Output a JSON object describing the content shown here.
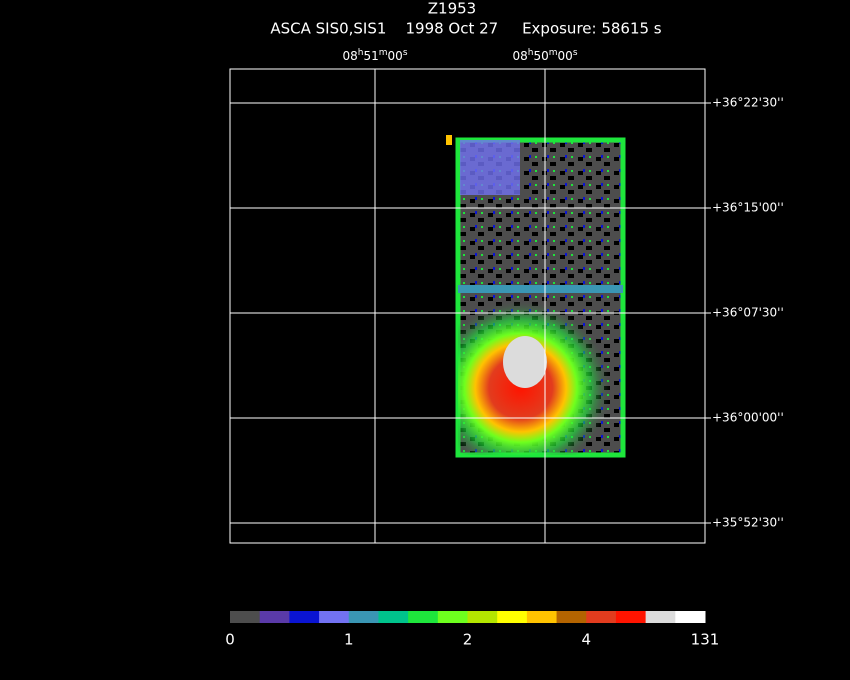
{
  "header": {
    "title": "Z1953",
    "subtitle": "ASCA SIS0,SIS1    1998 Oct 27     Exposure: 58615 s"
  },
  "axes": {
    "ra_labels": [
      {
        "h": "08",
        "hu": "h",
        "m": "51",
        "mu": "m",
        "s": "00",
        "su": "s"
      },
      {
        "h": "08",
        "hu": "h",
        "m": "50",
        "mu": "m",
        "s": "00",
        "su": "s"
      }
    ],
    "dec_labels": [
      "+36°22'30''",
      "+36°15'00''",
      "+36°07'30''",
      "+36°00'00''",
      "+35°52'30''"
    ]
  },
  "colorbar": {
    "colors": [
      "#4d4d4d",
      "#5a3aa8",
      "#0a14d2",
      "#7272f2",
      "#3a96b4",
      "#00c38c",
      "#1ee63c",
      "#6eff1e",
      "#b4e600",
      "#ffff00",
      "#ffc300",
      "#b46400",
      "#e23c1e",
      "#ff1400",
      "#dcdcdc",
      "#ffffff"
    ],
    "tick_labels": [
      "0",
      "1",
      "2",
      "4",
      "131"
    ]
  }
}
